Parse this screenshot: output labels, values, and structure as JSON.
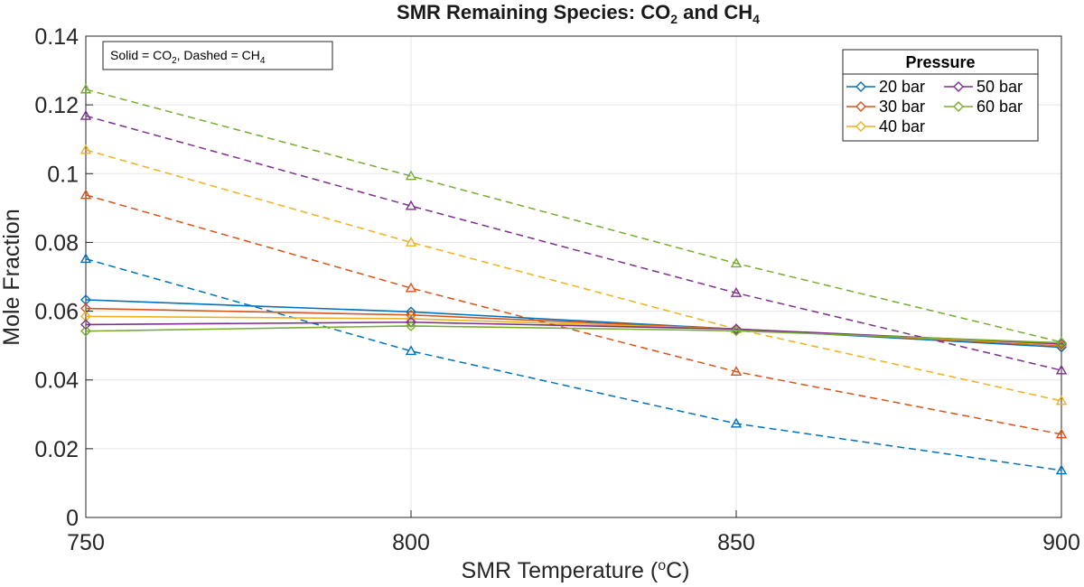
{
  "chart_data": {
    "type": "line",
    "title": "SMR Remaining Species: CO",
    "title_sub1": "2",
    "title_mid": " and CH",
    "title_sub2": "4",
    "xlabel": "SMR Temperature (",
    "xlabel_sup": "o",
    "xlabel_end": "C)",
    "ylabel": "Mole Fraction",
    "x": [
      750,
      800,
      850,
      900
    ],
    "x_ticks": [
      "750",
      "800",
      "850",
      "900"
    ],
    "y_ticks": [
      "0",
      "0.02",
      "0.04",
      "0.06",
      "0.08",
      "0.1",
      "0.12",
      "0.14"
    ],
    "xlim": [
      750,
      900
    ],
    "ylim": [
      0,
      0.14
    ],
    "grid": true,
    "annotation": {
      "a": "Solid = CO",
      "a_sub": "2",
      "b": ",  Dashed = CH",
      "b_sub": "4"
    },
    "legend": {
      "title": "Pressure",
      "placement": "top-right",
      "entries": [
        "20 bar",
        "30 bar",
        "40 bar",
        "50 bar",
        "60 bar"
      ]
    },
    "series": [
      {
        "name": "20 bar",
        "color": "#0072BD",
        "co2": [
          0.0633,
          0.0598,
          0.0548,
          0.0495
        ],
        "ch4": [
          0.0752,
          0.0484,
          0.0273,
          0.0137
        ]
      },
      {
        "name": "30 bar",
        "color": "#D95319",
        "co2": [
          0.0608,
          0.0589,
          0.0548,
          0.05
        ],
        "ch4": [
          0.0938,
          0.0667,
          0.0424,
          0.0242
        ]
      },
      {
        "name": "40 bar",
        "color": "#EDB120",
        "co2": [
          0.0585,
          0.0578,
          0.0548,
          0.0502
        ],
        "ch4": [
          0.1069,
          0.08,
          0.0548,
          0.0339
        ]
      },
      {
        "name": "50 bar",
        "color": "#7E2F8E",
        "co2": [
          0.0561,
          0.0568,
          0.0548,
          0.0505
        ],
        "ch4": [
          0.1168,
          0.0906,
          0.0653,
          0.0428
        ]
      },
      {
        "name": "60 bar",
        "color": "#77AC30",
        "co2": [
          0.0542,
          0.0557,
          0.0543,
          0.0508
        ],
        "ch4": [
          0.1245,
          0.0993,
          0.0739,
          0.051
        ]
      }
    ]
  }
}
